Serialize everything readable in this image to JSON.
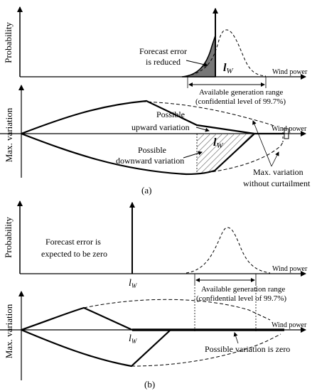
{
  "panel_a": {
    "caption": "(a)",
    "top_chart": {
      "ylabel": "Probability",
      "xlabel": "Wind power",
      "annotation_line1": "Forecast error",
      "annotation_line2": "is reduced",
      "lw_main": "l",
      "lw_sub": "W",
      "range_line1": "Available generation range",
      "range_line2": "(confidential level of 99.7%)"
    },
    "bottom_chart": {
      "ylabel": "Max. variation",
      "xlabel": "Wind power",
      "up_line1": "Possible",
      "up_line2": "upward variation",
      "down_line1": "Possible",
      "down_line2": "downward variation",
      "lw_main": "l",
      "lw_sub": "W",
      "maxvar_line1": "Max. variation",
      "maxvar_line2": "without curtailment"
    }
  },
  "panel_b": {
    "caption": "(b)",
    "top_chart": {
      "ylabel": "Probability",
      "xlabel": "Wind power",
      "annotation_line1": "Forecast error is",
      "annotation_line2": "expected to be zero",
      "lw_main": "l",
      "lw_sub": "W",
      "range_line1": "Available generation range",
      "range_line2": "(confidential level of 99.7%)"
    },
    "bottom_chart": {
      "ylabel": "Max. variation",
      "xlabel": "Wind power",
      "lw_main": "l",
      "lw_sub": "W",
      "zero_label": "Possible variation is zero"
    }
  }
}
